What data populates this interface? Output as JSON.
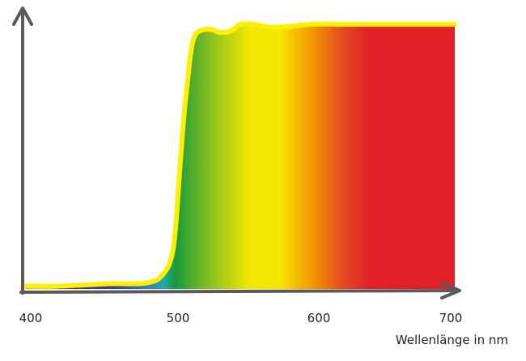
{
  "chart_data": {
    "type": "area",
    "title": "",
    "xlabel": "Wellenlänge in nm",
    "ylabel": "",
    "xlim": [
      400,
      700
    ],
    "ylim": [
      0,
      100
    ],
    "x_ticks": [
      "400",
      "500",
      "600",
      "700"
    ],
    "grid": false,
    "series": [
      {
        "x": [
          400,
          420,
          440,
          460,
          480,
          490,
          495,
          500,
          503,
          505,
          507,
          509,
          511,
          513,
          515,
          517,
          520,
          525,
          530,
          535,
          540,
          545,
          550,
          560,
          570,
          580,
          600,
          620,
          640,
          660,
          680,
          700
        ],
        "values": [
          1,
          1,
          1.5,
          2,
          2,
          3,
          5,
          9,
          15,
          25,
          40,
          55,
          68,
          78,
          88,
          94,
          97,
          98,
          98,
          97,
          97,
          98,
          100,
          100,
          99,
          99,
          100,
          100,
          100,
          100,
          100,
          100
        ]
      }
    ],
    "fill": "visible spectrum gradient (violet → blue → green → yellow → orange → red)",
    "outline_color": "#ffef00"
  }
}
